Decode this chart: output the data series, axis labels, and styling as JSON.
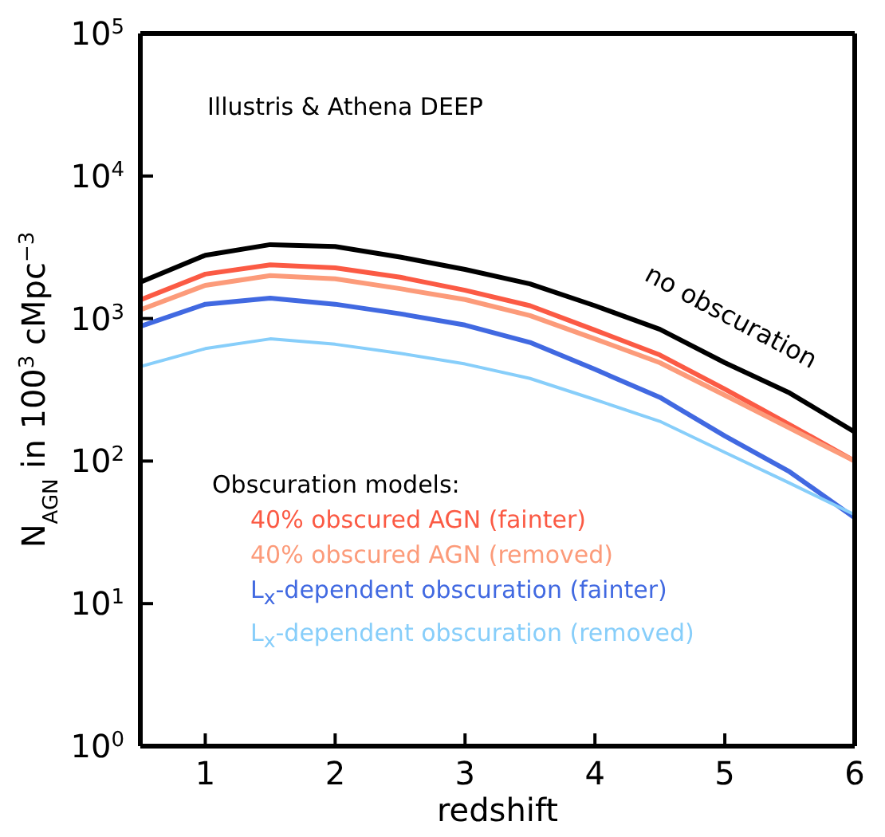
{
  "chart_data": {
    "type": "line",
    "xlabel": "redshift",
    "ylabel": "N$_{AGN}$ in 100$^{3}$ cMpc$^{−3}$",
    "annotations": [
      "Illustris & Athena DEEP"
    ],
    "legend_title": "Obscuration models:",
    "legend": "bottom left",
    "log": true,
    "grid": false,
    "marker": "none",
    "line_style": "solid",
    "x": [
      0.5,
      1,
      1.5,
      2,
      2.5,
      3,
      3.5,
      4,
      4.5,
      5,
      5.5,
      6
    ],
    "xlim": [
      0.5,
      6
    ],
    "xticks": [
      1,
      2,
      3,
      4,
      5,
      6
    ],
    "ylim": [
      1,
      100000
    ],
    "yticks": [
      {
        "value": 1,
        "label": "10$^{0}$"
      },
      {
        "value": 10,
        "label": "10$^{1}$"
      },
      {
        "value": 100,
        "label": "10$^{2}$"
      },
      {
        "value": 1000,
        "label": "10$^{3}$"
      },
      {
        "value": 10000,
        "label": "10$^{4}$"
      },
      {
        "value": 100000,
        "label": "10$^{5}$"
      }
    ],
    "series": [
      {
        "name": "no obscuration",
        "color": "#000000",
        "values": [
          1800,
          2780,
          3300,
          3200,
          2700,
          2210,
          1750,
          1230,
          840,
          490,
          300,
          160
        ]
      },
      {
        "name": "40% obscured AGN (fainter)",
        "color": "#fb5a44",
        "values": [
          1350,
          2050,
          2380,
          2270,
          1950,
          1580,
          1230,
          830,
          555,
          320,
          180,
          100
        ]
      },
      {
        "name": "40% obscured AGN (removed)",
        "color": "#fc9b7a",
        "values": [
          1150,
          1710,
          2000,
          1900,
          1620,
          1360,
          1050,
          720,
          490,
          290,
          170,
          100
        ]
      },
      {
        "name": "L$_{x}$-dependent obscuration (fainter)",
        "color": "#4169e1",
        "values": [
          880,
          1260,
          1390,
          1260,
          1080,
          900,
          680,
          440,
          280,
          150,
          84,
          40
        ]
      },
      {
        "name": "L$_{x}$-dependent obscuration (removed)",
        "color": "#87cefa",
        "values": [
          460,
          615,
          720,
          660,
          570,
          480,
          380,
          270,
          190,
          115,
          70,
          42
        ]
      }
    ]
  }
}
